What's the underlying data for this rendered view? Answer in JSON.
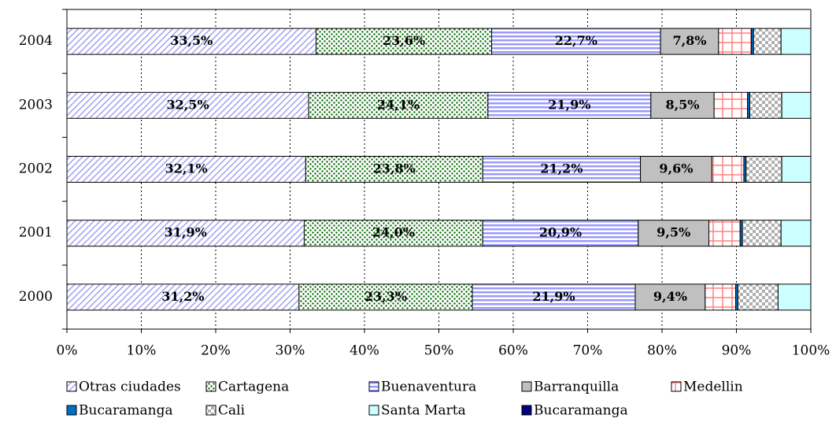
{
  "chart_data": {
    "type": "stacked_bar_horizontal_percent",
    "categories": [
      "2004",
      "2003",
      "2002",
      "2001",
      "2000"
    ],
    "series": [
      {
        "name": "Otras ciudades",
        "color": "#ccccff",
        "values": [
          33.5,
          32.5,
          32.1,
          31.9,
          31.2
        ],
        "value_labels": [
          "33,5%",
          "32,5%",
          "32,1%",
          "31,9%",
          "31,2%"
        ]
      },
      {
        "name": "Cartagena",
        "color": "#006600",
        "values": [
          23.6,
          24.1,
          23.8,
          24.0,
          23.3
        ],
        "value_labels": [
          "23,6%",
          "24,1%",
          "23,8%",
          "24,0%",
          "23,3%"
        ]
      },
      {
        "name": "Buenaventura",
        "color": "#9999ff",
        "values": [
          22.7,
          21.9,
          21.2,
          20.9,
          21.9
        ],
        "value_labels": [
          "22,7%",
          "21,9%",
          "21,2%",
          "20,9%",
          "21,9%"
        ]
      },
      {
        "name": "Barranquilla",
        "color": "#c0c0c0",
        "values": [
          7.8,
          8.5,
          9.6,
          9.5,
          9.4
        ],
        "value_labels": [
          "7,8%",
          "8,5%",
          "9,6%",
          "9,5%",
          "9,4%"
        ]
      },
      {
        "name": "Medellin",
        "color": "#ff9999",
        "values": [
          4.4,
          4.5,
          4.3,
          4.2,
          4.1
        ]
      },
      {
        "name": "Bucaramanga",
        "color": "#0070c0",
        "values": [
          0.3,
          0.3,
          0.3,
          0.3,
          0.3
        ]
      },
      {
        "name": "Cali",
        "color": "#b0b0b0",
        "values": [
          3.7,
          4.3,
          4.8,
          5.2,
          5.4
        ]
      },
      {
        "name": "Santa Marta",
        "color": "#ccffff",
        "values": [
          4.0,
          3.9,
          3.9,
          4.0,
          4.4
        ]
      },
      {
        "name": "Bucaramanga",
        "color": "#000080",
        "values": [
          0,
          0,
          0,
          0,
          0
        ]
      }
    ],
    "xlim": [
      0,
      100
    ],
    "xticks": [
      {
        "value": 0,
        "label": "0%"
      },
      {
        "value": 10,
        "label": "10%"
      },
      {
        "value": 20,
        "label": "20%"
      },
      {
        "value": 30,
        "label": "30%"
      },
      {
        "value": 40,
        "label": "40%"
      },
      {
        "value": 50,
        "label": "50%"
      },
      {
        "value": 60,
        "label": "60%"
      },
      {
        "value": 70,
        "label": "70%"
      },
      {
        "value": 80,
        "label": "80%"
      },
      {
        "value": 90,
        "label": "90%"
      },
      {
        "value": 100,
        "label": "100%"
      }
    ],
    "grid": true,
    "legend": "bottom"
  }
}
